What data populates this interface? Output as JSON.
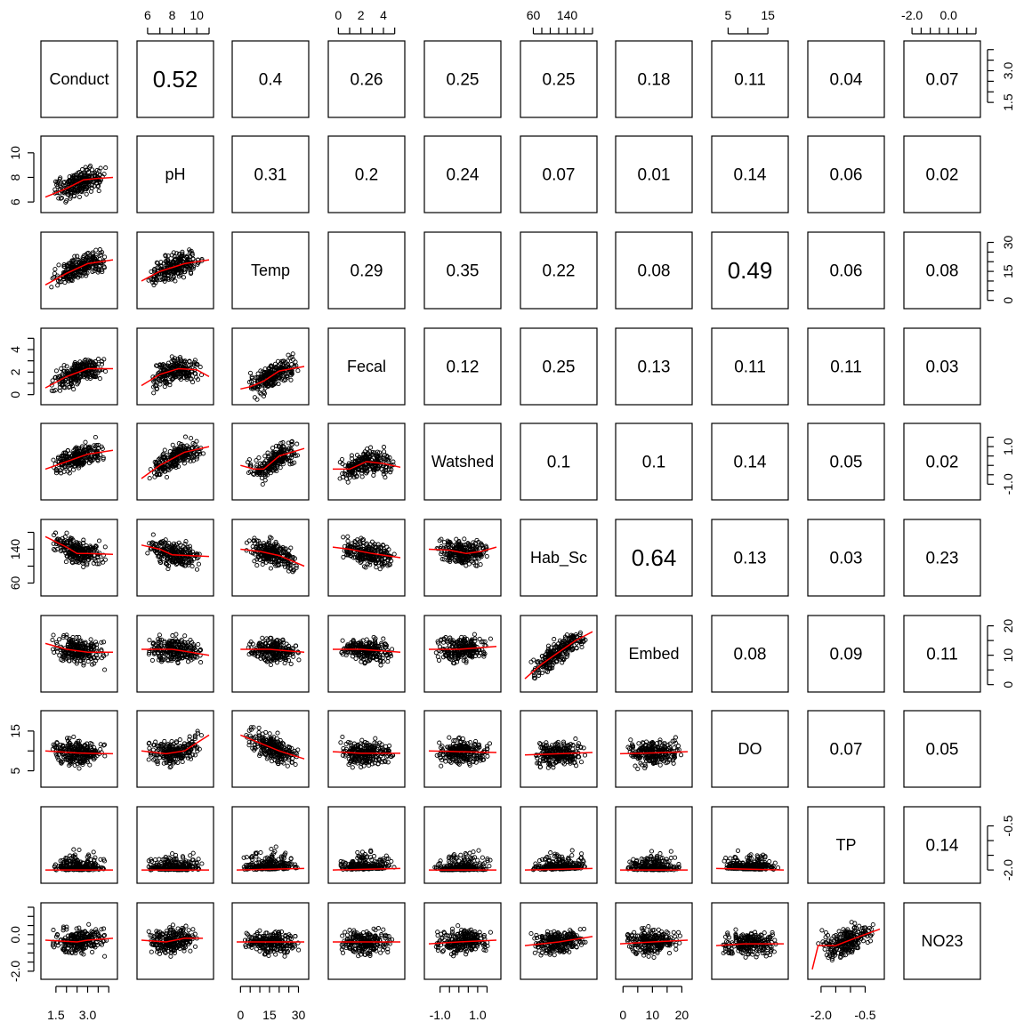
{
  "chart_data": {
    "type": "scatter",
    "variables": [
      "Conduct",
      "pH",
      "Temp",
      "Fecal",
      "Watshed",
      "Hab_Sc",
      "Embed",
      "DO",
      "TP",
      "NO23"
    ],
    "correlation_matrix_upper": [
      [
        "",
        "0.52",
        "0.4",
        "0.26",
        "0.25",
        "0.25",
        "0.18",
        "0.11",
        "0.04",
        "0.07"
      ],
      [
        "",
        "",
        "0.31",
        "0.2",
        "0.24",
        "0.07",
        "0.01",
        "0.14",
        "0.06",
        "0.02"
      ],
      [
        "",
        "",
        "",
        "0.29",
        "0.35",
        "0.22",
        "0.08",
        "0.49",
        "0.06",
        "0.08"
      ],
      [
        "",
        "",
        "",
        "",
        "0.12",
        "0.25",
        "0.13",
        "0.11",
        "0.11",
        "0.03"
      ],
      [
        "",
        "",
        "",
        "",
        "",
        "0.1",
        "0.1",
        "0.14",
        "0.05",
        "0.02"
      ],
      [
        "",
        "",
        "",
        "",
        "",
        "",
        "0.64",
        "0.13",
        "0.03",
        "0.23"
      ],
      [
        "",
        "",
        "",
        "",
        "",
        "",
        "",
        "0.08",
        "0.09",
        "0.11"
      ],
      [
        "",
        "",
        "",
        "",
        "",
        "",
        "",
        "",
        "0.07",
        "0.05"
      ],
      [
        "",
        "",
        "",
        "",
        "",
        "",
        "",
        "",
        "",
        "0.14"
      ],
      [
        "",
        "",
        "",
        "",
        "",
        "",
        "",
        "",
        "",
        ""
      ]
    ],
    "axis_ranges": {
      "Conduct": [
        1.0,
        4.2
      ],
      "pH": [
        5.5,
        11.0
      ],
      "Temp": [
        -2,
        33
      ],
      "Fecal": [
        -0.5,
        5.5
      ],
      "Watshed": [
        -1.6,
        2.0
      ],
      "Hab_Sc": [
        40,
        200
      ],
      "Embed": [
        -1,
        22
      ],
      "DO": [
        2,
        19
      ],
      "TP": [
        -2.3,
        0.0
      ],
      "NO23": [
        -2.2,
        1.5
      ]
    },
    "ticks": {
      "Conduct": {
        "labels": [
          "1.5",
          "3.0"
        ],
        "minor": [
          1.5,
          2.0,
          2.5,
          3.0,
          3.5,
          4.0
        ],
        "side": "bottom"
      },
      "pH": {
        "labels": [
          "6",
          "8",
          "10"
        ],
        "minor": [
          6,
          7,
          8,
          9,
          10,
          11
        ],
        "side": "top"
      },
      "Temp": {
        "labels": [
          "0",
          "15",
          "30"
        ],
        "minor": [
          0,
          5,
          10,
          15,
          20,
          25,
          30
        ],
        "side": "bottom"
      },
      "Fecal": {
        "labels": [
          "0",
          "2",
          "4"
        ],
        "minor": [
          0,
          1,
          2,
          3,
          4,
          5
        ],
        "side": "top"
      },
      "Watshed": {
        "labels": [
          "-1.0",
          "1.0"
        ],
        "minor": [
          -1.0,
          -0.5,
          0.0,
          0.5,
          1.0,
          1.5
        ],
        "side": "bottom"
      },
      "Hab_Sc": {
        "labels": [
          "60",
          "140"
        ],
        "minor": [
          60,
          80,
          100,
          120,
          140,
          160,
          180,
          200
        ],
        "side": "top"
      },
      "Embed": {
        "labels": [
          "0",
          "10",
          "20"
        ],
        "minor": [
          0,
          5,
          10,
          15,
          20
        ],
        "side": "bottom"
      },
      "DO": {
        "labels": [
          "5",
          "15"
        ],
        "minor": [
          5,
          10,
          15
        ],
        "side": "top"
      },
      "TP": {
        "labels": [
          "-2.0",
          "-0.5"
        ],
        "minor": [
          -2.0,
          -1.5,
          -1.0,
          -0.5
        ],
        "side": "bottom"
      },
      "NO23": {
        "labels": [
          "-2.0",
          "0.0"
        ],
        "minor": [
          -2.0,
          -1.5,
          -1.0,
          -0.5,
          0.0,
          0.5,
          1.0,
          1.5
        ],
        "side": "top"
      }
    },
    "y_ticks": {
      "Conduct": {
        "labels": [
          "1.5",
          "3.0"
        ],
        "minor": [
          1.5,
          2.0,
          2.5,
          3.0,
          3.5,
          4.0
        ],
        "side": "right"
      },
      "pH": {
        "labels": [
          "6",
          "8",
          "10"
        ],
        "minor": [
          6,
          8,
          10
        ],
        "side": "left"
      },
      "Temp": {
        "labels": [
          "0",
          "15",
          "30"
        ],
        "minor": [
          0,
          5,
          10,
          15,
          20,
          25,
          30
        ],
        "side": "right"
      },
      "Fecal": {
        "labels": [
          "0",
          "2",
          "4"
        ],
        "minor": [
          0,
          1,
          2,
          3,
          4,
          5
        ],
        "side": "left"
      },
      "Watshed": {
        "labels": [
          "-1.0",
          "1.0"
        ],
        "minor": [
          -1.0,
          -0.5,
          0.0,
          0.5,
          1.0,
          1.5
        ],
        "side": "right"
      },
      "Hab_Sc": {
        "labels": [
          "60",
          "140"
        ],
        "minor": [
          60,
          100,
          140,
          180
        ],
        "side": "left"
      },
      "Embed": {
        "labels": [
          "0",
          "10",
          "20"
        ],
        "minor": [
          0,
          5,
          10,
          15,
          20
        ],
        "side": "right"
      },
      "DO": {
        "labels": [
          "5",
          "15"
        ],
        "minor": [
          5,
          10,
          15
        ],
        "side": "left"
      },
      "TP": {
        "labels": [
          "-2.0",
          "-0.5"
        ],
        "minor": [
          -2.0,
          -1.5,
          -1.0,
          -0.5
        ],
        "side": "right"
      },
      "NO23": {
        "labels": [
          "-2.0",
          "0.0"
        ],
        "minor": [
          -2.0,
          -1.5,
          -1.0,
          -0.5,
          0.0,
          0.5,
          1.0,
          1.5
        ],
        "side": "left"
      }
    },
    "panel_style": {
      "point_color": "#000000",
      "smoother_color": "#ff0000",
      "point_shape": "open-circle",
      "grid": false,
      "legend": "none"
    },
    "scatter_trends": {
      "1-0": [
        [
          1.0,
          6.4
        ],
        [
          2.0,
          7.1
        ],
        [
          2.8,
          7.8
        ],
        [
          3.4,
          7.9
        ],
        [
          4.2,
          8.0
        ]
      ],
      "2-0": [
        [
          1.0,
          8
        ],
        [
          2.0,
          14
        ],
        [
          3.0,
          19
        ],
        [
          4.2,
          21
        ]
      ],
      "2-1": [
        [
          5.5,
          10
        ],
        [
          7.0,
          15
        ],
        [
          9.0,
          19
        ],
        [
          11.0,
          21
        ]
      ],
      "3-0": [
        [
          1.0,
          0.6
        ],
        [
          2.0,
          1.6
        ],
        [
          3.0,
          2.3
        ],
        [
          4.2,
          2.3
        ]
      ],
      "3-1": [
        [
          5.5,
          0.8
        ],
        [
          7.0,
          1.8
        ],
        [
          8.5,
          2.3
        ],
        [
          10.0,
          2.2
        ],
        [
          11.0,
          1.6
        ]
      ],
      "3-2": [
        [
          0,
          0.5
        ],
        [
          5,
          0.7
        ],
        [
          12,
          1.2
        ],
        [
          20,
          2.1
        ],
        [
          33,
          2.5
        ]
      ],
      "4-0": [
        [
          1.0,
          -0.2
        ],
        [
          2.0,
          0.2
        ],
        [
          3.0,
          0.6
        ],
        [
          4.2,
          0.8
        ]
      ],
      "4-1": [
        [
          5.5,
          -0.7
        ],
        [
          7.0,
          0.0
        ],
        [
          9.0,
          0.7
        ],
        [
          11.0,
          1.0
        ]
      ],
      "4-2": [
        [
          0,
          0.0
        ],
        [
          7,
          -0.2
        ],
        [
          12,
          -0.2
        ],
        [
          20,
          0.5
        ],
        [
          33,
          0.9
        ]
      ],
      "4-3": [
        [
          -0.5,
          -0.2
        ],
        [
          1.0,
          -0.2
        ],
        [
          2.5,
          0.2
        ],
        [
          4.0,
          0.1
        ],
        [
          5.5,
          -0.1
        ]
      ],
      "5-0": [
        [
          1.0,
          170
        ],
        [
          2.0,
          145
        ],
        [
          2.5,
          130
        ],
        [
          3.0,
          130
        ],
        [
          4.2,
          128
        ]
      ],
      "5-1": [
        [
          5.5,
          150
        ],
        [
          7.0,
          140
        ],
        [
          8.0,
          127
        ],
        [
          11.0,
          123
        ]
      ],
      "5-2": [
        [
          0,
          140
        ],
        [
          10,
          135
        ],
        [
          20,
          125
        ],
        [
          33,
          100
        ]
      ],
      "5-3": [
        [
          -0.5,
          145
        ],
        [
          1.0,
          140
        ],
        [
          3.0,
          130
        ],
        [
          5.5,
          120
        ]
      ],
      "5-4": [
        [
          -1.6,
          140
        ],
        [
          -0.5,
          138
        ],
        [
          0.4,
          130
        ],
        [
          1.2,
          135
        ],
        [
          2.0,
          145
        ]
      ],
      "6-0": [
        [
          1.0,
          14
        ],
        [
          2.0,
          12
        ],
        [
          3.0,
          11
        ],
        [
          4.2,
          11
        ]
      ],
      "6-1": [
        [
          5.5,
          12
        ],
        [
          8.0,
          12
        ],
        [
          9.5,
          11
        ],
        [
          11.0,
          10
        ]
      ],
      "6-2": [
        [
          0,
          12
        ],
        [
          15,
          12
        ],
        [
          33,
          11
        ]
      ],
      "6-3": [
        [
          -0.5,
          12
        ],
        [
          2.0,
          12
        ],
        [
          5.5,
          11
        ]
      ],
      "6-4": [
        [
          -1.6,
          12
        ],
        [
          0.0,
          12
        ],
        [
          2.0,
          13
        ]
      ],
      "6-5": [
        [
          40,
          2
        ],
        [
          80,
          7
        ],
        [
          120,
          11
        ],
        [
          160,
          15
        ],
        [
          200,
          18
        ]
      ],
      "7-0": [
        [
          1.0,
          10
        ],
        [
          2.5,
          9.5
        ],
        [
          3.0,
          9.4
        ],
        [
          4.2,
          9.3
        ]
      ],
      "7-1": [
        [
          5.5,
          10
        ],
        [
          7.5,
          9.3
        ],
        [
          9.0,
          10
        ],
        [
          10.0,
          12
        ],
        [
          11.0,
          14
        ]
      ],
      "7-2": [
        [
          0,
          14
        ],
        [
          10,
          12
        ],
        [
          20,
          10
        ],
        [
          33,
          8
        ]
      ],
      "7-3": [
        [
          -0.5,
          9.8
        ],
        [
          2.0,
          9.4
        ],
        [
          5.5,
          9.4
        ]
      ],
      "7-4": [
        [
          -1.6,
          10
        ],
        [
          0.0,
          9.8
        ],
        [
          2.0,
          9.6
        ]
      ],
      "7-5": [
        [
          40,
          9
        ],
        [
          120,
          9.3
        ],
        [
          200,
          9.6
        ]
      ],
      "7-6": [
        [
          -1,
          9.3
        ],
        [
          10,
          9.5
        ],
        [
          22,
          9.8
        ]
      ],
      "8-0": [
        [
          1.0,
          -2.0
        ],
        [
          4.2,
          -2.0
        ]
      ],
      "8-1": [
        [
          5.5,
          -2.0
        ],
        [
          11.0,
          -2.0
        ]
      ],
      "8-2": [
        [
          -2,
          -2.0
        ],
        [
          33,
          -1.95
        ]
      ],
      "8-3": [
        [
          -0.5,
          -2.0
        ],
        [
          5.5,
          -1.95
        ]
      ],
      "8-4": [
        [
          -1.6,
          -2.0
        ],
        [
          2.0,
          -2.0
        ]
      ],
      "8-5": [
        [
          40,
          -2.0
        ],
        [
          200,
          -1.95
        ]
      ],
      "8-6": [
        [
          -1,
          -2.0
        ],
        [
          22,
          -2.0
        ]
      ],
      "8-7": [
        [
          2,
          -1.95
        ],
        [
          19,
          -2.0
        ]
      ],
      "9-0": [
        [
          1.0,
          -0.3
        ],
        [
          2.5,
          -0.4
        ],
        [
          3.0,
          -0.3
        ],
        [
          4.2,
          -0.2
        ]
      ],
      "9-1": [
        [
          5.5,
          -0.3
        ],
        [
          7.5,
          -0.4
        ],
        [
          9.0,
          -0.2
        ],
        [
          10.5,
          -0.2
        ]
      ],
      "9-2": [
        [
          -2,
          -0.4
        ],
        [
          33,
          -0.4
        ]
      ],
      "9-3": [
        [
          -0.5,
          -0.4
        ],
        [
          5.5,
          -0.4
        ]
      ],
      "9-4": [
        [
          -1.6,
          -0.5
        ],
        [
          0.0,
          -0.4
        ],
        [
          2.0,
          -0.3
        ]
      ],
      "9-5": [
        [
          40,
          -0.6
        ],
        [
          120,
          -0.4
        ],
        [
          200,
          -0.1
        ]
      ],
      "9-6": [
        [
          -1,
          -0.5
        ],
        [
          10,
          -0.4
        ],
        [
          22,
          -0.3
        ]
      ],
      "9-7": [
        [
          2,
          -0.6
        ],
        [
          9,
          -0.5
        ],
        [
          19,
          -0.5
        ]
      ],
      "9-8": [
        [
          -2.3,
          -1.9
        ],
        [
          -2.1,
          -0.6
        ],
        [
          -1.5,
          -0.6
        ],
        [
          -0.7,
          -0.1
        ],
        [
          0.0,
          0.3
        ]
      ]
    }
  }
}
